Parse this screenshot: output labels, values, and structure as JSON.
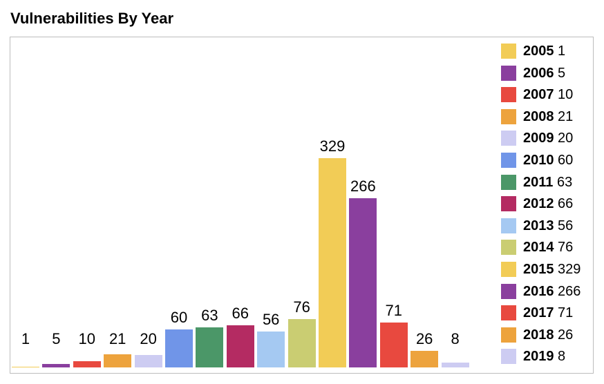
{
  "title": "Vulnerabilities By Year",
  "panel": {
    "border_color": "#bcbcbc",
    "background": "#ffffff"
  },
  "chart_data": {
    "type": "bar",
    "title": "Vulnerabilities By Year",
    "categories": [
      "2005",
      "2006",
      "2007",
      "2008",
      "2009",
      "2010",
      "2011",
      "2012",
      "2013",
      "2014",
      "2015",
      "2016",
      "2017",
      "2018",
      "2019"
    ],
    "values": [
      1,
      5,
      10,
      21,
      20,
      60,
      63,
      66,
      56,
      76,
      329,
      266,
      71,
      26,
      8
    ],
    "bar_colors": [
      "#F2CC56",
      "#8A3F9E",
      "#E8493F",
      "#EDA33D",
      "#CDCCF2",
      "#7095E8",
      "#4B9768",
      "#B42B62",
      "#A5C9F2",
      "#CACD72",
      "#F2CC56",
      "#8A3F9E",
      "#E8493F",
      "#EDA33D",
      "#CDCCF2"
    ],
    "xlabel": "",
    "ylabel": "",
    "ylim": [
      0,
      345
    ],
    "grid": false,
    "bar_value_labels": true,
    "legend_position": "right",
    "legend": [
      {
        "label": "2005",
        "value": "1"
      },
      {
        "label": "2006",
        "value": "5"
      },
      {
        "label": "2007",
        "value": "10"
      },
      {
        "label": "2008",
        "value": "21"
      },
      {
        "label": "2009",
        "value": "20"
      },
      {
        "label": "2010",
        "value": "60"
      },
      {
        "label": "2011",
        "value": "63"
      },
      {
        "label": "2012",
        "value": "66"
      },
      {
        "label": "2013",
        "value": "56"
      },
      {
        "label": "2014",
        "value": "76"
      },
      {
        "label": "2015",
        "value": "329"
      },
      {
        "label": "2016",
        "value": "266"
      },
      {
        "label": "2017",
        "value": "71"
      },
      {
        "label": "2018",
        "value": "26"
      },
      {
        "label": "2019",
        "value": "8"
      }
    ]
  }
}
